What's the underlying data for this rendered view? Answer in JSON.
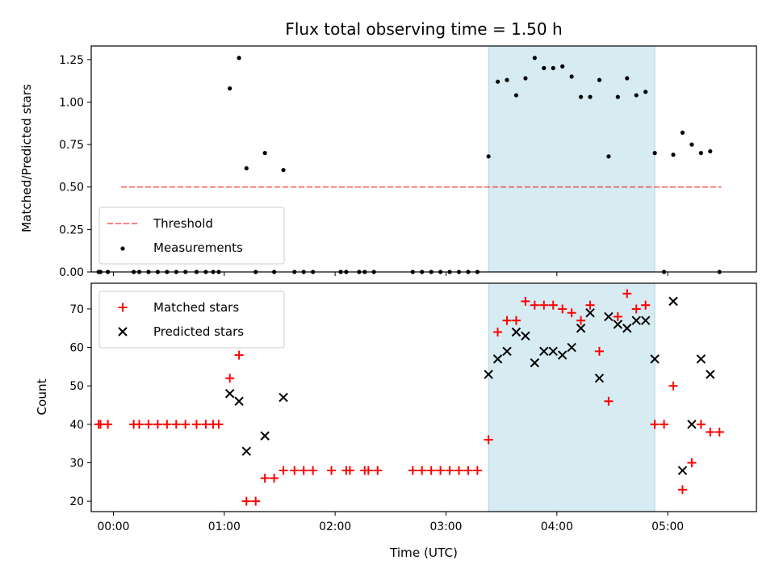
{
  "chart_data": [
    {
      "type": "scatter",
      "title": "Flux total observing time = 1.50 h",
      "xlabel": "",
      "ylabel": "Matched/Predicted stars",
      "xlim": [
        "23:48",
        "05:48"
      ],
      "ylim": [
        0,
        1.33
      ],
      "yticks": [
        "0.00",
        "0.25",
        "0.50",
        "0.75",
        "1.00",
        "1.25"
      ],
      "xticks": [
        "00:00",
        "01:00",
        "02:00",
        "03:00",
        "04:00",
        "05:00"
      ],
      "show_xtick_labels": false,
      "grid": false,
      "legend": "lower-left",
      "highlight_span": {
        "from": "03:23",
        "to": "04:53",
        "color": "#add8e6"
      },
      "threshold": {
        "name": "Threshold",
        "y": 0.5,
        "x_from": "23:48",
        "x_to": "05:29",
        "color": "#ff0000"
      },
      "series": [
        {
          "name": "Measurements",
          "marker": "dot",
          "color": "#000000",
          "points": [
            [
              "23:52",
              0
            ],
            [
              "23:53",
              0
            ],
            [
              "23:57",
              0
            ],
            [
              "00:11",
              0
            ],
            [
              "00:14",
              0
            ],
            [
              "00:19",
              0
            ],
            [
              "00:24",
              0
            ],
            [
              "00:29",
              0
            ],
            [
              "00:34",
              0
            ],
            [
              "00:39",
              0
            ],
            [
              "00:45",
              0
            ],
            [
              "00:50",
              0
            ],
            [
              "00:54",
              0
            ],
            [
              "00:57",
              0
            ],
            [
              "01:03",
              1.08
            ],
            [
              "01:08",
              1.26
            ],
            [
              "01:12",
              0.61
            ],
            [
              "01:17",
              0
            ],
            [
              "01:22",
              0.7
            ],
            [
              "01:27",
              0
            ],
            [
              "01:32",
              0.6
            ],
            [
              "01:38",
              0
            ],
            [
              "01:43",
              0
            ],
            [
              "01:48",
              0
            ],
            [
              "02:03",
              0
            ],
            [
              "02:06",
              0
            ],
            [
              "02:13",
              0
            ],
            [
              "02:16",
              0
            ],
            [
              "02:21",
              0
            ],
            [
              "02:42",
              0
            ],
            [
              "02:47",
              0
            ],
            [
              "02:52",
              0
            ],
            [
              "02:57",
              0
            ],
            [
              "03:02",
              0
            ],
            [
              "03:07",
              0
            ],
            [
              "03:12",
              0
            ],
            [
              "03:17",
              0
            ],
            [
              "03:23",
              0.68
            ],
            [
              "03:28",
              1.12
            ],
            [
              "03:33",
              1.13
            ],
            [
              "03:38",
              1.04
            ],
            [
              "03:43",
              1.14
            ],
            [
              "03:48",
              1.26
            ],
            [
              "03:53",
              1.2
            ],
            [
              "03:58",
              1.2
            ],
            [
              "04:03",
              1.21
            ],
            [
              "04:08",
              1.15
            ],
            [
              "04:13",
              1.03
            ],
            [
              "04:18",
              1.03
            ],
            [
              "04:23",
              1.13
            ],
            [
              "04:28",
              0.68
            ],
            [
              "04:33",
              1.03
            ],
            [
              "04:38",
              1.14
            ],
            [
              "04:43",
              1.04
            ],
            [
              "04:48",
              1.06
            ],
            [
              "04:53",
              0.7
            ],
            [
              "04:58",
              0
            ],
            [
              "05:03",
              0.69
            ],
            [
              "05:08",
              0.82
            ],
            [
              "05:13",
              0.75
            ],
            [
              "05:18",
              0.7
            ],
            [
              "05:23",
              0.71
            ],
            [
              "05:28",
              0
            ]
          ]
        }
      ]
    },
    {
      "type": "scatter",
      "title": "",
      "xlabel": "Time (UTC)",
      "ylabel": "Count",
      "xlim": [
        "23:48",
        "05:48"
      ],
      "ylim": [
        17.3,
        76.7
      ],
      "yticks": [
        "20",
        "30",
        "40",
        "50",
        "60",
        "70"
      ],
      "xticks": [
        "00:00",
        "01:00",
        "02:00",
        "03:00",
        "04:00",
        "05:00"
      ],
      "grid": false,
      "legend": "upper-left",
      "highlight_span": {
        "from": "03:23",
        "to": "04:53",
        "color": "#add8e6"
      },
      "series": [
        {
          "name": "Matched stars",
          "marker": "plus",
          "color": "#ff0000",
          "points": [
            [
              "23:52",
              40
            ],
            [
              "23:53",
              40
            ],
            [
              "23:57",
              40
            ],
            [
              "00:11",
              40
            ],
            [
              "00:14",
              40
            ],
            [
              "00:19",
              40
            ],
            [
              "00:24",
              40
            ],
            [
              "00:29",
              40
            ],
            [
              "00:34",
              40
            ],
            [
              "00:39",
              40
            ],
            [
              "00:45",
              40
            ],
            [
              "00:50",
              40
            ],
            [
              "00:54",
              40
            ],
            [
              "00:57",
              40
            ],
            [
              "01:03",
              52
            ],
            [
              "01:08",
              58
            ],
            [
              "01:12",
              20
            ],
            [
              "01:17",
              20
            ],
            [
              "01:22",
              26
            ],
            [
              "01:27",
              26
            ],
            [
              "01:32",
              28
            ],
            [
              "01:38",
              28
            ],
            [
              "01:43",
              28
            ],
            [
              "01:48",
              28
            ],
            [
              "01:58",
              28
            ],
            [
              "02:06",
              28
            ],
            [
              "02:08",
              28
            ],
            [
              "02:16",
              28
            ],
            [
              "02:18",
              28
            ],
            [
              "02:23",
              28
            ],
            [
              "02:42",
              28
            ],
            [
              "02:47",
              28
            ],
            [
              "02:52",
              28
            ],
            [
              "02:57",
              28
            ],
            [
              "03:02",
              28
            ],
            [
              "03:07",
              28
            ],
            [
              "03:12",
              28
            ],
            [
              "03:17",
              28
            ],
            [
              "03:23",
              36
            ],
            [
              "03:28",
              64
            ],
            [
              "03:33",
              67
            ],
            [
              "03:38",
              67
            ],
            [
              "03:43",
              72
            ],
            [
              "03:48",
              71
            ],
            [
              "03:53",
              71
            ],
            [
              "03:58",
              71
            ],
            [
              "04:03",
              70
            ],
            [
              "04:08",
              69
            ],
            [
              "04:13",
              67
            ],
            [
              "04:18",
              71
            ],
            [
              "04:23",
              59
            ],
            [
              "04:28",
              46
            ],
            [
              "04:33",
              68
            ],
            [
              "04:38",
              74
            ],
            [
              "04:43",
              70
            ],
            [
              "04:48",
              71
            ],
            [
              "04:53",
              40
            ],
            [
              "04:58",
              40
            ],
            [
              "05:03",
              50
            ],
            [
              "05:08",
              23
            ],
            [
              "05:13",
              30
            ],
            [
              "05:18",
              40
            ],
            [
              "05:23",
              38
            ],
            [
              "05:28",
              38
            ]
          ]
        },
        {
          "name": "Predicted stars",
          "marker": "x",
          "color": "#000000",
          "points": [
            [
              "01:03",
              48
            ],
            [
              "01:08",
              46
            ],
            [
              "01:12",
              33
            ],
            [
              "01:22",
              37
            ],
            [
              "01:32",
              47
            ],
            [
              "03:23",
              53
            ],
            [
              "03:28",
              57
            ],
            [
              "03:33",
              59
            ],
            [
              "03:38",
              64
            ],
            [
              "03:43",
              63
            ],
            [
              "03:48",
              56
            ],
            [
              "03:53",
              59
            ],
            [
              "03:58",
              59
            ],
            [
              "04:03",
              58
            ],
            [
              "04:08",
              60
            ],
            [
              "04:13",
              65
            ],
            [
              "04:18",
              69
            ],
            [
              "04:23",
              52
            ],
            [
              "04:28",
              68
            ],
            [
              "04:33",
              66
            ],
            [
              "04:38",
              65
            ],
            [
              "04:43",
              67
            ],
            [
              "04:48",
              67
            ],
            [
              "04:53",
              57
            ],
            [
              "05:03",
              72
            ],
            [
              "05:08",
              28
            ],
            [
              "05:13",
              40
            ],
            [
              "05:18",
              57
            ],
            [
              "05:23",
              53
            ]
          ]
        }
      ]
    }
  ]
}
